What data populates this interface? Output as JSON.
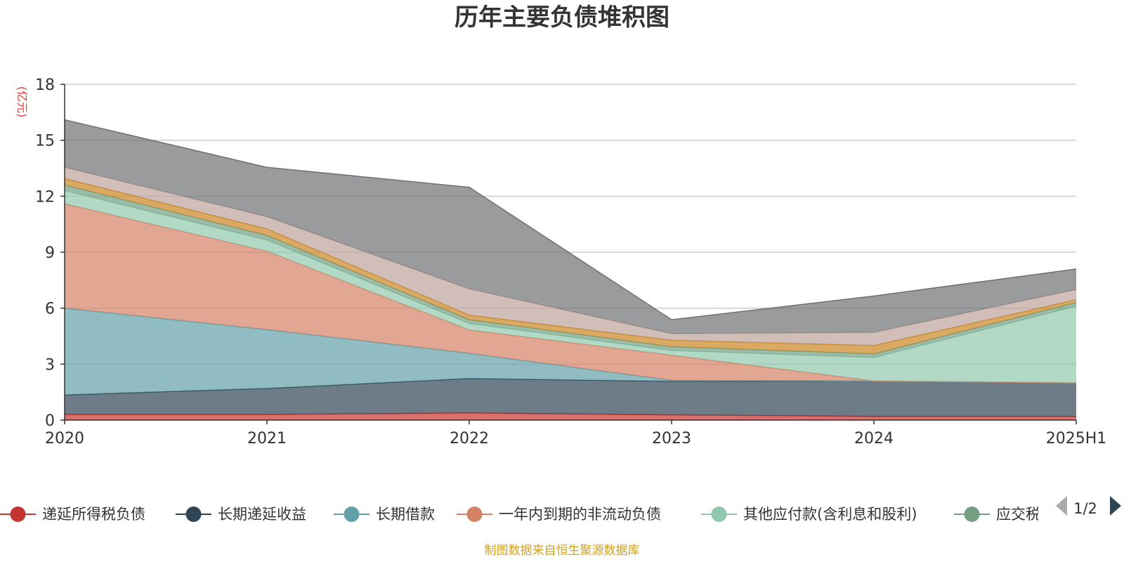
{
  "page": {
    "title": "历年主要负债堆积图",
    "source": "制图数据来自恒生聚源数据库"
  },
  "legend": {
    "visible_items": [
      "递延所得税负债",
      "长期递延收益",
      "长期借款",
      "一年内到期的非流动负债",
      "其他应付款(含利息和股利)",
      "应交税费"
    ],
    "page_indicator": "1/2",
    "prev_icon": "triangle-left-icon",
    "next_icon": "triangle-right-icon"
  },
  "chart_data": {
    "type": "area",
    "stacked": true,
    "title": "历年主要负债堆积图",
    "ylabel": "(亿元)",
    "x": [
      "2020",
      "2021",
      "2022",
      "2023",
      "2024",
      "2025H1"
    ],
    "ylim": [
      0,
      18
    ],
    "yticks": [
      0,
      3,
      6,
      9,
      12,
      15,
      18
    ],
    "grid": true,
    "legend_position": "bottom",
    "series": [
      {
        "name": "递延所得税负债",
        "color": "#c23531",
        "values": [
          0.3,
          0.3,
          0.38,
          0.28,
          0.2,
          0.2
        ]
      },
      {
        "name": "长期递延收益",
        "color": "#2f4554",
        "values": [
          1.05,
          1.4,
          1.85,
          1.8,
          1.9,
          1.8
        ]
      },
      {
        "name": "长期借款",
        "color": "#61a0a8",
        "values": [
          4.65,
          3.15,
          1.35,
          0.05,
          0.0,
          0.0
        ]
      },
      {
        "name": "一年内到期的非流动负债",
        "color": "#d48265",
        "values": [
          5.6,
          4.2,
          1.25,
          1.35,
          0.0,
          0.0
        ]
      },
      {
        "name": "其他应付款(含利息和股利)",
        "color": "#91c7ae",
        "values": [
          0.7,
          0.6,
          0.35,
          0.25,
          1.25,
          4.1
        ]
      },
      {
        "name": "应交税费",
        "color": "#749f83",
        "values": [
          0.3,
          0.25,
          0.2,
          0.2,
          0.2,
          0.2
        ]
      },
      {
        "color": "#ca8622",
        "values": [
          0.35,
          0.35,
          0.25,
          0.35,
          0.45,
          0.15
        ]
      },
      {
        "color": "#bda29a",
        "values": [
          0.6,
          0.65,
          1.4,
          0.35,
          0.7,
          0.55
        ]
      },
      {
        "color": "#6e7074",
        "values": [
          2.55,
          2.65,
          5.45,
          0.75,
          1.95,
          1.1
        ]
      }
    ]
  }
}
